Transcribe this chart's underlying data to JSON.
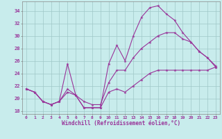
{
  "xlabel": "Windchill (Refroidissement éolien,°C)",
  "bg_color": "#c8ecec",
  "line_color": "#993399",
  "ylim": [
    17.5,
    35.5
  ],
  "xlim": [
    -0.5,
    23.5
  ],
  "yticks": [
    18,
    20,
    22,
    24,
    26,
    28,
    30,
    32,
    34
  ],
  "xticks": [
    0,
    1,
    2,
    3,
    4,
    5,
    6,
    7,
    8,
    9,
    10,
    11,
    12,
    13,
    14,
    15,
    16,
    17,
    18,
    19,
    20,
    21,
    22,
    23
  ],
  "series1": [
    21.5,
    21.0,
    19.5,
    19.0,
    19.5,
    25.5,
    20.5,
    18.5,
    18.5,
    18.5,
    25.5,
    28.5,
    26.0,
    30.0,
    33.0,
    34.5,
    34.8,
    33.5,
    32.5,
    30.5,
    29.0,
    27.5,
    26.5,
    25.0
  ],
  "series2": [
    21.5,
    21.0,
    19.5,
    19.0,
    19.5,
    21.5,
    20.5,
    19.5,
    19.0,
    19.0,
    22.5,
    24.5,
    24.5,
    26.5,
    28.0,
    29.0,
    30.0,
    30.5,
    30.5,
    29.5,
    29.0,
    27.5,
    26.5,
    25.2
  ],
  "series3": [
    21.5,
    21.0,
    19.5,
    19.0,
    19.5,
    21.0,
    20.5,
    18.5,
    18.5,
    18.5,
    21.0,
    21.5,
    21.0,
    22.0,
    23.0,
    24.0,
    24.5,
    24.5,
    24.5,
    24.5,
    24.5,
    24.5,
    24.5,
    25.0
  ]
}
